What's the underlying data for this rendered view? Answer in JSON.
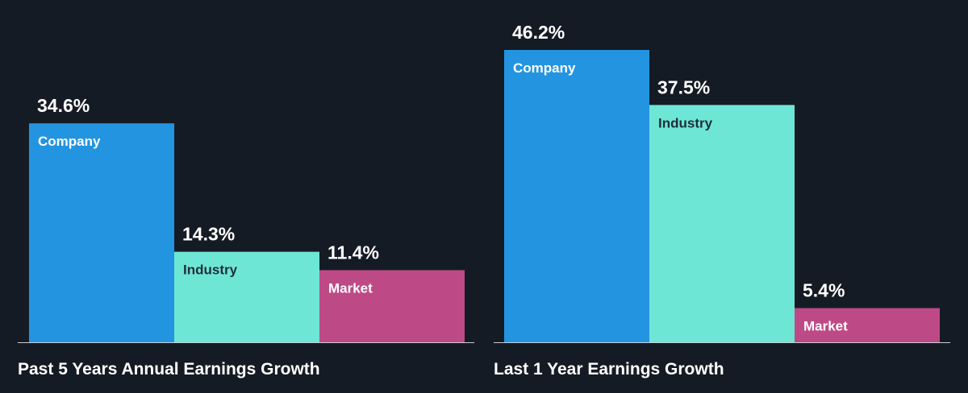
{
  "colors": {
    "background": "#151b24",
    "company": "#2394e0",
    "industry": "#6ee6d6",
    "market": "#bd4a86",
    "baseline": "#c9ced6",
    "label_dark": "#1f2d3a",
    "label_light": "#ffffff"
  },
  "chart_data": [
    {
      "type": "bar",
      "title": "Past 5 Years Annual Earnings Growth",
      "categories": [
        "Company",
        "Industry",
        "Market"
      ],
      "values": [
        34.6,
        14.3,
        11.4
      ],
      "value_labels": [
        "34.6%",
        "14.3%",
        "11.4%"
      ],
      "unit": "%",
      "xlabel": "",
      "ylabel": "",
      "ylim": [
        0,
        46.2
      ],
      "grid": false,
      "legend": "none"
    },
    {
      "type": "bar",
      "title": "Last 1 Year Earnings Growth",
      "categories": [
        "Company",
        "Industry",
        "Market"
      ],
      "values": [
        46.2,
        37.5,
        5.4
      ],
      "value_labels": [
        "46.2%",
        "37.5%",
        "5.4%"
      ],
      "unit": "%",
      "xlabel": "",
      "ylabel": "",
      "ylim": [
        0,
        46.2
      ],
      "grid": false,
      "legend": "none"
    }
  ]
}
